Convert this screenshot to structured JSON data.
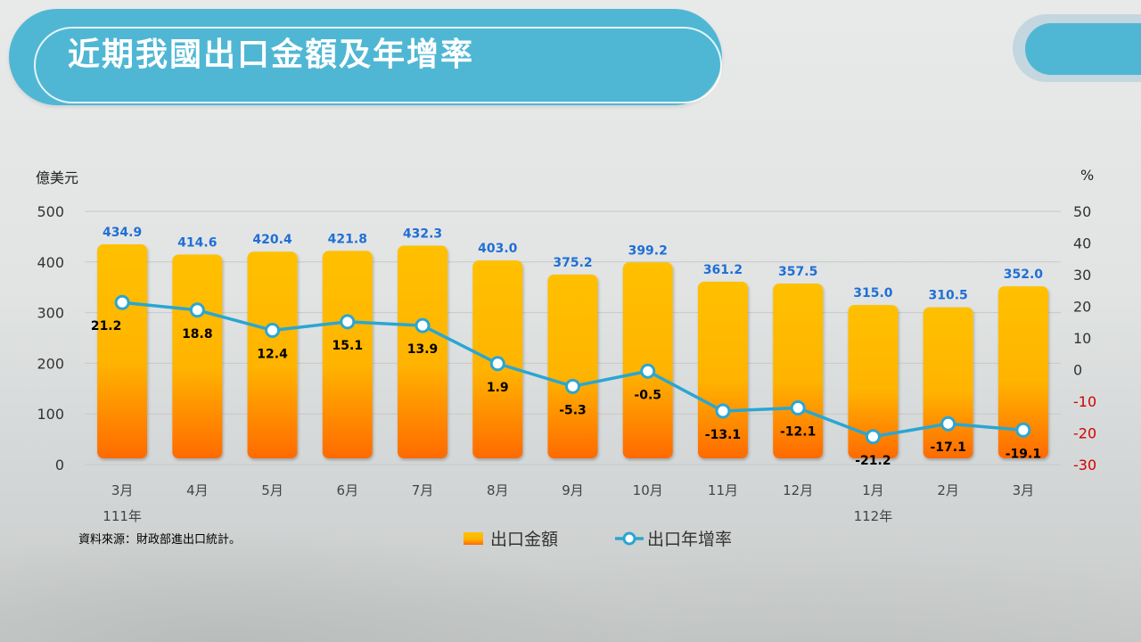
{
  "title": "近期我國出口金額及年增率",
  "source": "資料來源：財政部進出口統計。",
  "colors": {
    "title_bg": "#4fb7d4",
    "bar_top": "#ffc000",
    "bar_bottom": "#ff6a00",
    "line": "#2aa6d2",
    "value_label": "#1f6fd6",
    "negative_tick": "#d40000"
  },
  "chart_data": {
    "type": "bar",
    "categories": [
      "3月",
      "4月",
      "5月",
      "6月",
      "7月",
      "8月",
      "9月",
      "10月",
      "11月",
      "12月",
      "1月",
      "2月",
      "3月"
    ],
    "year_labels": [
      {
        "label": "111年",
        "category_index": 0
      },
      {
        "label": "112年",
        "category_index": 10
      }
    ],
    "ylabel": "億美元",
    "y2label": "%",
    "ylim": [
      0,
      500
    ],
    "yticks": [
      0,
      100,
      200,
      300,
      400,
      500
    ],
    "y2lim": [
      -30,
      50
    ],
    "y2ticks": [
      50,
      40,
      30,
      20,
      10,
      0,
      -10,
      -20,
      -30
    ],
    "grid": true,
    "legend_position": "bottom",
    "series": [
      {
        "name": "出口金額",
        "type": "bar",
        "axis": "left",
        "values": [
          434.9,
          414.6,
          420.4,
          421.8,
          432.3,
          403.0,
          375.2,
          399.2,
          361.2,
          357.5,
          315.0,
          310.5,
          352.0
        ],
        "labels": [
          "434.9",
          "414.6",
          "420.4",
          "421.8",
          "432.3",
          "403.0",
          "375.2",
          "399.2",
          "361.2",
          "357.5",
          "315.0",
          "310.5",
          "352.0"
        ]
      },
      {
        "name": "出口年增率",
        "type": "line",
        "axis": "right",
        "values": [
          21.2,
          18.8,
          12.4,
          15.1,
          13.9,
          1.9,
          -5.3,
          -0.5,
          -13.1,
          -12.1,
          -21.2,
          -17.1,
          -19.1
        ],
        "labels": [
          "21.2",
          "18.8",
          "12.4",
          "15.1",
          "13.9",
          "1.9",
          "-5.3",
          "-0.5",
          "-13.1",
          "-12.1",
          "-21.2",
          "-17.1",
          "-19.1"
        ]
      }
    ]
  }
}
